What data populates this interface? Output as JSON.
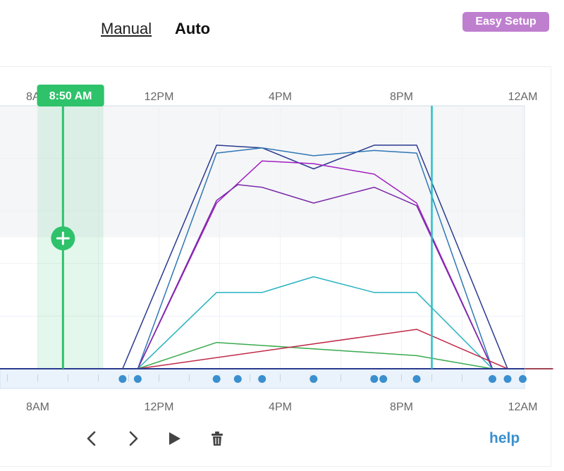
{
  "tabs": {
    "manual": "Manual",
    "auto": "Auto"
  },
  "easy_setup_label": "Easy Setup",
  "help_label": "help",
  "controls": {
    "prev": "chevron-left-icon",
    "next": "chevron-right-icon",
    "play": "play-icon",
    "delete": "trash-icon"
  },
  "colors": {
    "accent_green": "#2ec26a",
    "cursor_teal": "#27c2c6",
    "easy_setup": "#bf7fcf",
    "help": "#3a8fcf",
    "point_blue": "#3a8fcf"
  },
  "chart_data": {
    "type": "line",
    "x_ticks_top": [
      "8AM",
      "12PM",
      "4PM",
      "8PM",
      "12AM"
    ],
    "x_ticks_bottom": [
      "8AM",
      "12PM",
      "4PM",
      "8PM",
      "12AM"
    ],
    "xlim_hours": [
      7,
      25
    ],
    "ylim": [
      0,
      100
    ],
    "grid": true,
    "current_time_label": "8:50 AM",
    "current_time_hour": 8.8333,
    "current_time_window": [
      8.0,
      10.1667
    ],
    "now_marker_hour": 21.0,
    "shaded_band_y": [
      50,
      100
    ],
    "keypoint_hours": [
      10.8,
      11.3,
      13.9,
      14.6,
      15.4,
      17.1,
      19.1,
      19.4,
      20.5,
      23.0,
      23.5,
      24.0
    ],
    "series": [
      {
        "color": "#2b3a8f",
        "x": [
          7,
          10.8,
          13.9,
          15.4,
          17.1,
          19.1,
          20.5,
          23.5,
          25
        ],
        "y": [
          0,
          0,
          85,
          84,
          76,
          85,
          85,
          0,
          0
        ]
      },
      {
        "color": "#2f77b5",
        "x": [
          7,
          11.3,
          13.9,
          15.4,
          17.1,
          19.1,
          20.5,
          23.0,
          25
        ],
        "y": [
          0,
          0,
          82,
          84,
          81,
          83,
          82,
          0,
          0
        ]
      },
      {
        "color": "#a020c0",
        "x": [
          7,
          11.3,
          13.9,
          15.4,
          17.1,
          19.1,
          20.5,
          23.0,
          25
        ],
        "y": [
          0,
          0,
          63,
          79,
          78,
          74,
          63,
          0,
          0
        ]
      },
      {
        "color": "#7a2aa8",
        "x": [
          7,
          11.3,
          13.9,
          14.6,
          15.4,
          17.1,
          19.1,
          20.5,
          23.0,
          25
        ],
        "y": [
          0,
          0,
          64,
          70,
          69,
          63,
          69,
          62,
          0,
          0
        ]
      },
      {
        "color": "#27b3c0",
        "x": [
          7,
          11.3,
          13.9,
          15.4,
          17.1,
          19.1,
          20.5,
          23.0,
          25
        ],
        "y": [
          0,
          0,
          29,
          29,
          35,
          29,
          29,
          0,
          0
        ]
      },
      {
        "color": "#3aaa4f",
        "x": [
          7,
          11.3,
          13.9,
          20.5,
          23.0,
          25
        ],
        "y": [
          0,
          0,
          10,
          5,
          0,
          0
        ]
      },
      {
        "color": "#c02a48",
        "x": [
          7,
          11.3,
          20.5,
          23.5,
          25
        ],
        "y": [
          0,
          0,
          15,
          0,
          0
        ]
      }
    ]
  }
}
